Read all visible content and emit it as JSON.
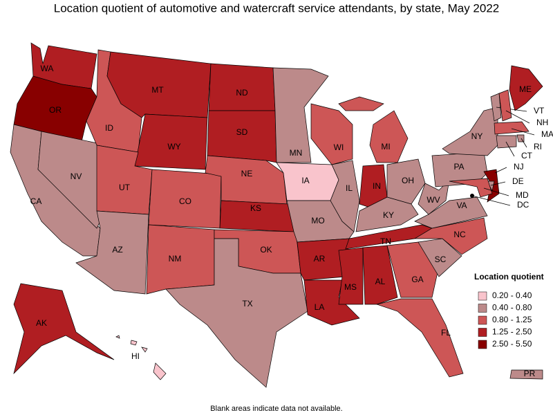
{
  "title": "Location quotient of automotive and watercraft service attendants, by state, May 2022",
  "legend": {
    "title": "Location quotient",
    "items": [
      {
        "label": "0.20 - 0.40",
        "color": "#f9c4cc"
      },
      {
        "label": "0.40 - 0.80",
        "color": "#bc8a8a"
      },
      {
        "label": "0.80 - 1.25",
        "color": "#cd5656"
      },
      {
        "label": "1.25 - 2.50",
        "color": "#b01e22"
      },
      {
        "label": "2.50 - 5.50",
        "color": "#880000"
      }
    ]
  },
  "states": [
    {
      "label": "WA",
      "class": 3
    },
    {
      "label": "OR",
      "class": 4
    },
    {
      "label": "CA",
      "class": 1
    },
    {
      "label": "NV",
      "class": 1
    },
    {
      "label": "ID",
      "class": 2
    },
    {
      "label": "MT",
      "class": 3
    },
    {
      "label": "WY",
      "class": 3
    },
    {
      "label": "UT",
      "class": 2
    },
    {
      "label": "CO",
      "class": 2
    },
    {
      "label": "AZ",
      "class": 1
    },
    {
      "label": "NM",
      "class": 2
    },
    {
      "label": "ND",
      "class": 3
    },
    {
      "label": "SD",
      "class": 3
    },
    {
      "label": "NE",
      "class": 2
    },
    {
      "label": "KS",
      "class": 3
    },
    {
      "label": "OK",
      "class": 2
    },
    {
      "label": "TX",
      "class": 1
    },
    {
      "label": "MN",
      "class": 1
    },
    {
      "label": "IA",
      "class": 0
    },
    {
      "label": "MO",
      "class": 1
    },
    {
      "label": "AR",
      "class": 3
    },
    {
      "label": "LA",
      "class": 3
    },
    {
      "label": "WI",
      "class": 2
    },
    {
      "label": "IL",
      "class": 1
    },
    {
      "label": "MI",
      "class": 2
    },
    {
      "label": "IN",
      "class": 3
    },
    {
      "label": "OH",
      "class": 1
    },
    {
      "label": "KY",
      "class": 1
    },
    {
      "label": "TN",
      "class": 3
    },
    {
      "label": "MS",
      "class": 3
    },
    {
      "label": "AL",
      "class": 3
    },
    {
      "label": "GA",
      "class": 2
    },
    {
      "label": "FL",
      "class": 2
    },
    {
      "label": "SC",
      "class": 1
    },
    {
      "label": "NC",
      "class": 2
    },
    {
      "label": "VA",
      "class": 1
    },
    {
      "label": "WV",
      "class": 1
    },
    {
      "label": "PA",
      "class": 1
    },
    {
      "label": "NY",
      "class": 1
    },
    {
      "label": "ME",
      "class": 3
    },
    {
      "label": "VT",
      "class": 1
    },
    {
      "label": "NH",
      "class": 2
    },
    {
      "label": "MA",
      "class": 2
    },
    {
      "label": "RI",
      "class": 1
    },
    {
      "label": "CT",
      "class": 1
    },
    {
      "label": "NJ",
      "class": 4
    },
    {
      "label": "DE",
      "class": 1
    },
    {
      "label": "MD",
      "class": 2
    },
    {
      "label": "DC",
      "class": 4
    },
    {
      "label": "AK",
      "class": 3
    },
    {
      "label": "HI",
      "class": 0
    },
    {
      "label": "PR",
      "class": 1
    }
  ],
  "footnote": "Blank areas indicate data not available."
}
